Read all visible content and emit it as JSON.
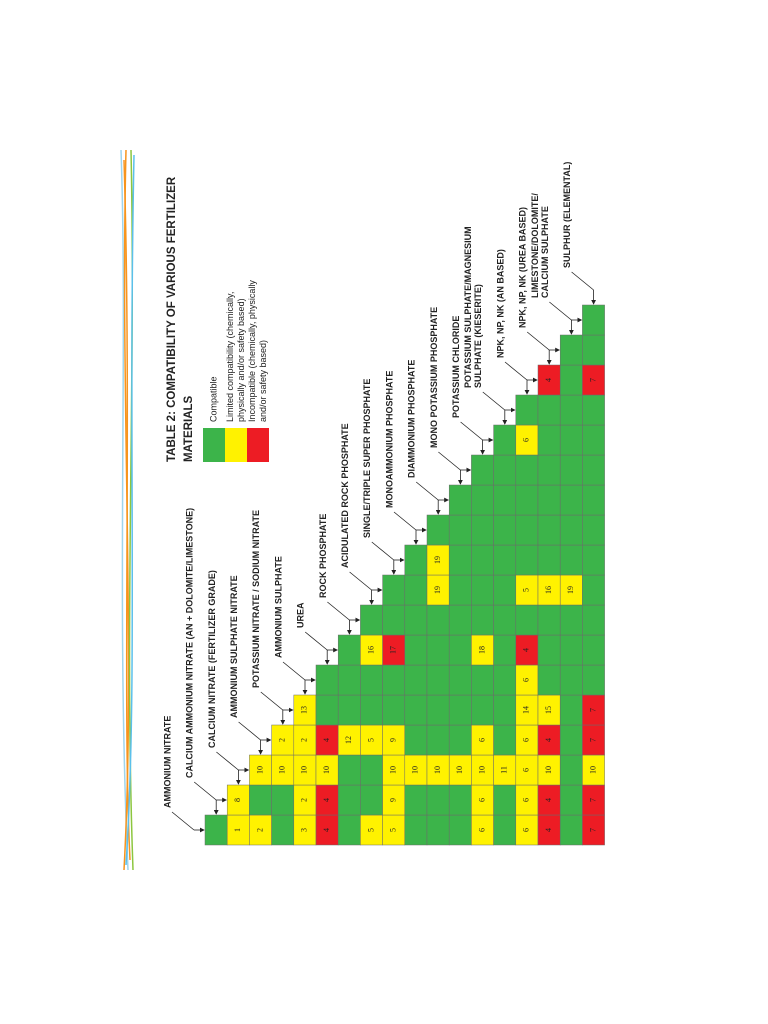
{
  "title": [
    "TABLE 2: COMPATIBILITY OF VARIOUS FERTILIZER",
    "MATERIALS"
  ],
  "legend": [
    {
      "label": [
        "Compatible"
      ],
      "color": "#3cb44a"
    },
    {
      "label": [
        "Limited compatibility (chemically,",
        "physically and/or safety based)"
      ],
      "color": "#fff200"
    },
    {
      "label": [
        "Incompatible (chemically, physically",
        "and/or safety based)"
      ],
      "color": "#ed1c24"
    }
  ],
  "materials": [
    [
      "AMMONIUM NITRATE"
    ],
    [
      "CALCIUM AMMONIUM NITRATE (AN + DOLOMITE/LIMESTONE)"
    ],
    [
      "CALCIUM NITRATE (FERTILIZER GRADE)"
    ],
    [
      "AMMONIUM SULPHATE NITRATE"
    ],
    [
      "POTASSIUM NITRATE / SODIUM NITRATE"
    ],
    [
      "AMMONIUM SULPHATE"
    ],
    [
      "UREA"
    ],
    [
      "ROCK PHOSPHATE"
    ],
    [
      "ACIDULATED ROCK PHOSPHATE"
    ],
    [
      "SINGLE/TRIPLE SUPER PHOSPHATE"
    ],
    [
      "MONOAMMONIUM PHOSPHATE"
    ],
    [
      "DIAMMONIUM PHOSPHATE"
    ],
    [
      "MONO POTASSIUM PHOSPHATE"
    ],
    [
      "POTASSIUM CHLORIDE"
    ],
    [
      "POTASSIUM SULPHATE/MAGNESIUM",
      "SULPHATE (KIESERITE)"
    ],
    [
      "NPK, NP, NK (AN BASED)"
    ],
    [
      "NPK, NP, NK (UREA BASED)"
    ],
    [
      "LIMESTONE/DOLOMITE/",
      "CALCIUM SULPHATE"
    ],
    [
      "SULPHUR (ELEMENTAL)"
    ]
  ],
  "table": {
    "rows": [
      [
        [
          0
        ]
      ],
      [
        [
          1,
          1
        ],
        [
          1,
          8
        ]
      ],
      [
        [
          1,
          2
        ],
        [
          0
        ],
        [
          1,
          10
        ]
      ],
      [
        [
          0
        ],
        [
          0
        ],
        [
          1,
          10
        ],
        [
          1,
          2
        ]
      ],
      [
        [
          1,
          3
        ],
        [
          1,
          2
        ],
        [
          1,
          10
        ],
        [
          1,
          2
        ],
        [
          1,
          13
        ]
      ],
      [
        [
          2,
          4
        ],
        [
          2,
          4
        ],
        [
          1,
          10
        ],
        [
          2,
          4
        ],
        [
          0
        ],
        [
          0
        ]
      ],
      [
        [
          0
        ],
        [
          0
        ],
        [
          0
        ],
        [
          1,
          12
        ],
        [
          0
        ],
        [
          0
        ],
        [
          0
        ]
      ],
      [
        [
          1,
          5
        ],
        [
          0
        ],
        [
          0
        ],
        [
          1,
          5
        ],
        [
          0
        ],
        [
          0
        ],
        [
          1,
          16
        ],
        [
          0
        ]
      ],
      [
        [
          1,
          5
        ],
        [
          1,
          9
        ],
        [
          1,
          10
        ],
        [
          1,
          9
        ],
        [
          0
        ],
        [
          0
        ],
        [
          2,
          17
        ],
        [
          0
        ],
        [
          0
        ]
      ],
      [
        [
          0
        ],
        [
          0
        ],
        [
          1,
          10
        ],
        [
          0
        ],
        [
          0
        ],
        [
          0
        ],
        [
          0
        ],
        [
          0
        ],
        [
          0
        ],
        [
          0
        ]
      ],
      [
        [
          0
        ],
        [
          0
        ],
        [
          1,
          10
        ],
        [
          0
        ],
        [
          0
        ],
        [
          0
        ],
        [
          0
        ],
        [
          0
        ],
        [
          1,
          19
        ],
        [
          1,
          19
        ],
        [
          0
        ]
      ],
      [
        [
          0
        ],
        [
          0
        ],
        [
          1,
          10
        ],
        [
          0
        ],
        [
          0
        ],
        [
          0
        ],
        [
          0
        ],
        [
          0
        ],
        [
          0
        ],
        [
          0
        ],
        [
          0
        ],
        [
          0
        ]
      ],
      [
        [
          1,
          6
        ],
        [
          1,
          6
        ],
        [
          1,
          10
        ],
        [
          1,
          6
        ],
        [
          0
        ],
        [
          0
        ],
        [
          1,
          18
        ],
        [
          0
        ],
        [
          0
        ],
        [
          0
        ],
        [
          0
        ],
        [
          0
        ],
        [
          0
        ]
      ],
      [
        [
          0
        ],
        [
          0
        ],
        [
          1,
          11
        ],
        [
          0
        ],
        [
          0
        ],
        [
          0
        ],
        [
          0
        ],
        [
          0
        ],
        [
          0
        ],
        [
          0
        ],
        [
          0
        ],
        [
          0
        ],
        [
          0
        ],
        [
          0
        ]
      ],
      [
        [
          1,
          6
        ],
        [
          1,
          6
        ],
        [
          1,
          6
        ],
        [
          1,
          6
        ],
        [
          1,
          14
        ],
        [
          1,
          6
        ],
        [
          2,
          4
        ],
        [
          0
        ],
        [
          1,
          5
        ],
        [
          0
        ],
        [
          0
        ],
        [
          0
        ],
        [
          0
        ],
        [
          1,
          6
        ],
        [
          0
        ]
      ],
      [
        [
          2,
          4
        ],
        [
          2,
          4
        ],
        [
          1,
          10
        ],
        [
          2,
          4
        ],
        [
          1,
          15
        ],
        [
          0
        ],
        [
          0
        ],
        [
          0
        ],
        [
          1,
          16
        ],
        [
          0
        ],
        [
          0
        ],
        [
          0
        ],
        [
          0
        ],
        [
          0
        ],
        [
          0
        ],
        [
          2,
          4
        ]
      ],
      [
        [
          0
        ],
        [
          0
        ],
        [
          0
        ],
        [
          0
        ],
        [
          0
        ],
        [
          0
        ],
        [
          0
        ],
        [
          0
        ],
        [
          1,
          19
        ],
        [
          0
        ],
        [
          0
        ],
        [
          0
        ],
        [
          0
        ],
        [
          0
        ],
        [
          0
        ],
        [
          0
        ],
        [
          0
        ]
      ],
      [
        [
          2,
          7
        ],
        [
          2,
          7
        ],
        [
          1,
          10
        ],
        [
          2,
          7
        ],
        [
          2,
          7
        ],
        [
          0
        ],
        [
          0
        ],
        [
          0
        ],
        [
          0
        ],
        [
          0
        ],
        [
          0
        ],
        [
          0
        ],
        [
          0
        ],
        [
          0
        ],
        [
          0
        ],
        [
          2,
          7
        ],
        [
          0
        ],
        [
          0
        ]
      ]
    ]
  }
}
